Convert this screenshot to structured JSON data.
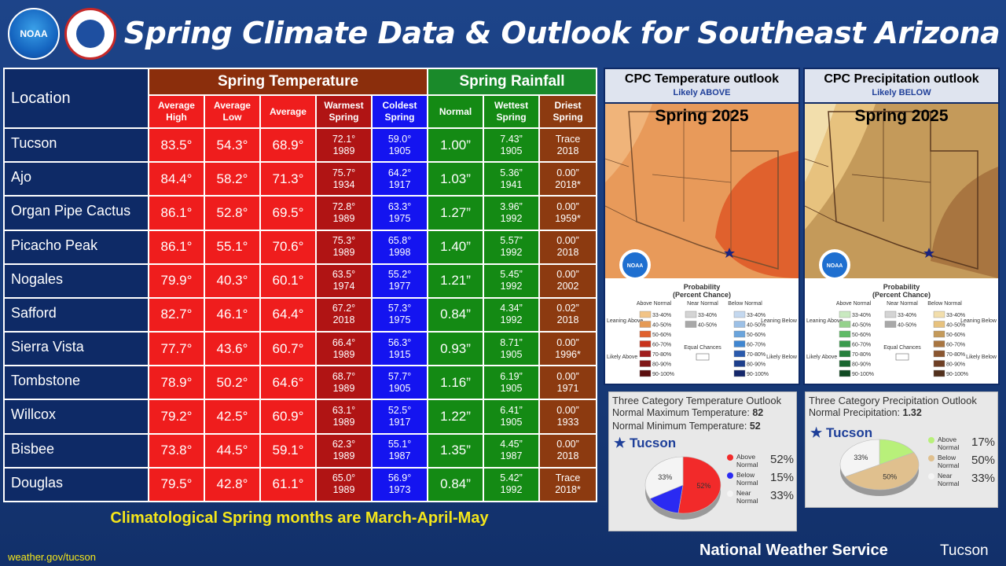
{
  "title": "Spring Climate Data & Outlook for Southeast Arizona",
  "logos": {
    "noaa": "NOAA",
    "nws": "NATIONAL WEATHER SERVICE"
  },
  "table": {
    "location_header": "Location",
    "temp_header": "Spring Temperature",
    "rain_header": "Spring Rainfall",
    "columns": [
      "Average High",
      "Average Low",
      "Average",
      "Warmest Spring",
      "Coldest Spring",
      "Normal",
      "Wettest Spring",
      "Driest Spring"
    ],
    "rows": [
      {
        "loc": "Tucson",
        "hi": "83.5°",
        "lo": "54.3°",
        "avg": "68.9°",
        "warm": "72.1°",
        "warm_yr": "1989",
        "cold": "59.0°",
        "cold_yr": "1905",
        "normal": "1.00”",
        "wet": "7.43”",
        "wet_yr": "1905",
        "dry": "Trace",
        "dry_yr": "2018"
      },
      {
        "loc": "Ajo",
        "hi": "84.4°",
        "lo": "58.2°",
        "avg": "71.3°",
        "warm": "75.7°",
        "warm_yr": "1934",
        "cold": "64.2°",
        "cold_yr": "1917",
        "normal": "1.03”",
        "wet": "5.36”",
        "wet_yr": "1941",
        "dry": "0.00”",
        "dry_yr": "2018*"
      },
      {
        "loc": "Organ Pipe Cactus",
        "hi": "86.1°",
        "lo": "52.8°",
        "avg": "69.5°",
        "warm": "72.8°",
        "warm_yr": "1989",
        "cold": "63.3°",
        "cold_yr": "1975",
        "normal": "1.27”",
        "wet": "3.96”",
        "wet_yr": "1992",
        "dry": "0.00”",
        "dry_yr": "1959*"
      },
      {
        "loc": "Picacho Peak",
        "hi": "86.1°",
        "lo": "55.1°",
        "avg": "70.6°",
        "warm": "75.3°",
        "warm_yr": "1989",
        "cold": "65.8°",
        "cold_yr": "1998",
        "normal": "1.40”",
        "wet": "5.57”",
        "wet_yr": "1992",
        "dry": "0.00”",
        "dry_yr": "2018"
      },
      {
        "loc": "Nogales",
        "hi": "79.9°",
        "lo": "40.3°",
        "avg": "60.1°",
        "warm": "63.5°",
        "warm_yr": "1974",
        "cold": "55.2°",
        "cold_yr": "1977",
        "normal": "1.21”",
        "wet": "5.45”",
        "wet_yr": "1992",
        "dry": "0.00”",
        "dry_yr": "2002"
      },
      {
        "loc": "Safford",
        "hi": "82.7°",
        "lo": "46.1°",
        "avg": "64.4°",
        "warm": "67.2°",
        "warm_yr": "2018",
        "cold": "57.3°",
        "cold_yr": "1975",
        "normal": "0.84”",
        "wet": "4.34”",
        "wet_yr": "1992",
        "dry": "0.02”",
        "dry_yr": "2018"
      },
      {
        "loc": "Sierra Vista",
        "hi": "77.7°",
        "lo": "43.6°",
        "avg": "60.7°",
        "warm": "66.4°",
        "warm_yr": "1989",
        "cold": "56.3°",
        "cold_yr": "1915",
        "normal": "0.93”",
        "wet": "8.71”",
        "wet_yr": "1905",
        "dry": "0.00”",
        "dry_yr": "1996*"
      },
      {
        "loc": "Tombstone",
        "hi": "78.9°",
        "lo": "50.2°",
        "avg": "64.6°",
        "warm": "68.7°",
        "warm_yr": "1989",
        "cold": "57.7°",
        "cold_yr": "1905",
        "normal": "1.16”",
        "wet": "6.19”",
        "wet_yr": "1905",
        "dry": "0.00”",
        "dry_yr": "1971"
      },
      {
        "loc": "Willcox",
        "hi": "79.2°",
        "lo": "42.5°",
        "avg": "60.9°",
        "warm": "63.1°",
        "warm_yr": "1989",
        "cold": "52.5°",
        "cold_yr": "1917",
        "normal": "1.22”",
        "wet": "6.41”",
        "wet_yr": "1905",
        "dry": "0.00”",
        "dry_yr": "1933"
      },
      {
        "loc": "Bisbee",
        "hi": "73.8°",
        "lo": "44.5°",
        "avg": "59.1°",
        "warm": "62.3°",
        "warm_yr": "1989",
        "cold": "55.1°",
        "cold_yr": "1987",
        "normal": "1.35”",
        "wet": "4.45”",
        "wet_yr": "1987",
        "dry": "0.00”",
        "dry_yr": "2018"
      },
      {
        "loc": "Douglas",
        "hi": "79.5°",
        "lo": "42.8°",
        "avg": "61.1°",
        "warm": "65.0°",
        "warm_yr": "1989",
        "cold": "56.9°",
        "cold_yr": "1973",
        "normal": "0.84”",
        "wet": "5.42”",
        "wet_yr": "1992",
        "dry": "Trace",
        "dry_yr": "2018*"
      }
    ]
  },
  "footer": {
    "note": "Climatological Spring months are March-April-May",
    "url": "weather.gov/tucson",
    "agency": "National Weather Service",
    "office": "Tucson"
  },
  "outlooks": {
    "temp": {
      "title": "CPC Temperature outlook",
      "subtitle": "Likely ABOVE",
      "season": "Spring 2025"
    },
    "precip": {
      "title": "CPC Precipitation outlook",
      "subtitle": "Likely BELOW",
      "season": "Spring 2025"
    },
    "legend": {
      "title1": "Probability",
      "title2": "(Percent Chance)",
      "above": "Above Normal",
      "near": "Near Normal",
      "below": "Below Normal",
      "leaning_above": "Leaning Above",
      "leaning_below": "Leaning Below",
      "likely_above": "Likely Above",
      "likely_below": "Likely Below",
      "equal": "Equal Chances",
      "ranges": [
        "33-40%",
        "40-50%",
        "50-60%",
        "60-70%",
        "70-80%",
        "80-90%",
        "90-100%"
      ],
      "near_ranges": [
        "33-40%",
        "40-50%"
      ],
      "above_colors": [
        "#f2c486",
        "#e59a55",
        "#e0612d",
        "#c8331c",
        "#a01e1e",
        "#801616",
        "#5c0f0f"
      ],
      "below_colors": [
        "#c4d8ef",
        "#9cc0e6",
        "#6aa4dc",
        "#3f86d1",
        "#2a5aad",
        "#1d3f8c",
        "#14276b"
      ],
      "precip_below_colors": [
        "#f2deac",
        "#e7c27e",
        "#c49a5a",
        "#a87540",
        "#8a5630",
        "#6e3f24",
        "#52301c"
      ],
      "precip_above_colors": [
        "#c9e9c0",
        "#95d28c",
        "#5fbb66",
        "#3a9a4c",
        "#26803c",
        "#1a6630",
        "#104a22"
      ],
      "near_colors": [
        "#d4d4d4",
        "#a8a8a8"
      ]
    }
  },
  "pie_temp": {
    "title": "Three Category Temperature Outlook",
    "line1_label": "Normal Maximum Temperature:",
    "line1_value": "82",
    "line2_label": "Normal Minimum Temperature:",
    "line2_value": "52",
    "city": "Tucson",
    "slices": [
      {
        "label1": "Above",
        "label2": "Normal",
        "value": 52,
        "pct": "52%",
        "color": "#f22a2a"
      },
      {
        "label1": "Below",
        "label2": "Normal",
        "value": 15,
        "pct": "15%",
        "color": "#2a2af2"
      },
      {
        "label1": "Near",
        "label2": "Normal",
        "value": 33,
        "pct": "33%",
        "color": "#f4f4f4"
      }
    ]
  },
  "pie_precip": {
    "title": "Three Category Precipitation Outlook",
    "line1_label": "Normal Precipitation:",
    "line1_value": "1.32",
    "city": "Tucson",
    "slices": [
      {
        "label1": "Above",
        "label2": "Normal",
        "value": 17,
        "pct": "17%",
        "color": "#b8f07a"
      },
      {
        "label1": "Below",
        "label2": "Normal",
        "value": 50,
        "pct": "50%",
        "color": "#e0c08e"
      },
      {
        "label1": "Near",
        "label2": "Normal",
        "value": 33,
        "pct": "33%",
        "color": "#f4f4f4"
      }
    ]
  }
}
